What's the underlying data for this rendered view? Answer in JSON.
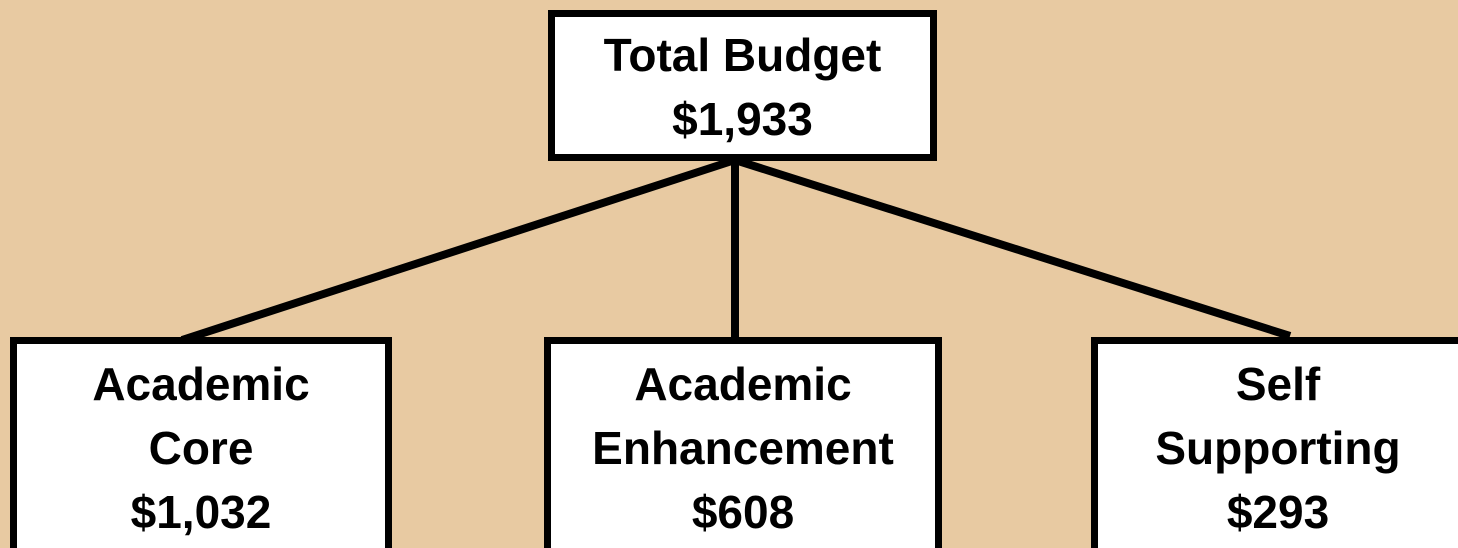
{
  "nodes": [
    {
      "label_lines": [
        "Total Budget"
      ],
      "value": "$1,933"
    },
    {
      "label_lines": [
        "Academic",
        "Core"
      ],
      "value": "$1,032"
    },
    {
      "label_lines": [
        "Academic",
        "Enhancement"
      ],
      "value": "$608"
    },
    {
      "label_lines": [
        "Self",
        "Supporting"
      ],
      "value": "$293"
    }
  ]
}
